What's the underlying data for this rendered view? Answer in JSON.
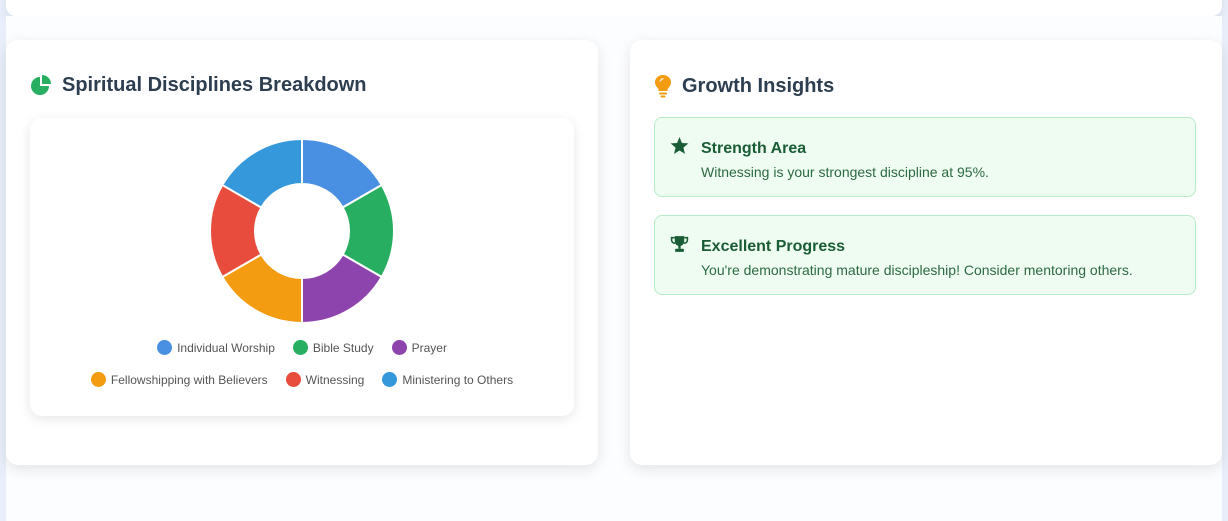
{
  "breakdown": {
    "title": "Spiritual Disciplines Breakdown",
    "icon": "pie-chart-icon",
    "accent": "#27ae60"
  },
  "chart_data": {
    "type": "pie",
    "title": "Spiritual Disciplines Breakdown",
    "categories": [
      "Individual Worship",
      "Bible Study",
      "Prayer",
      "Fellowshipping with Believers",
      "Witnessing",
      "Ministering to Others"
    ],
    "values": [
      1,
      1,
      1,
      1,
      1,
      1
    ],
    "colors": [
      "#4a90e2",
      "#27ae60",
      "#8e44ad",
      "#f39c12",
      "#e74c3c",
      "#3498db"
    ],
    "legend_position": "bottom"
  },
  "insights": {
    "title": "Growth Insights",
    "icon": "lightbulb-icon",
    "accent": "#f39c12",
    "items": [
      {
        "icon": "star-icon",
        "title": "Strength Area",
        "text": "Witnessing is your strongest discipline at 95%."
      },
      {
        "icon": "trophy-icon",
        "title": "Excellent Progress",
        "text": "You're demonstrating mature discipleship! Consider mentoring others."
      }
    ]
  }
}
